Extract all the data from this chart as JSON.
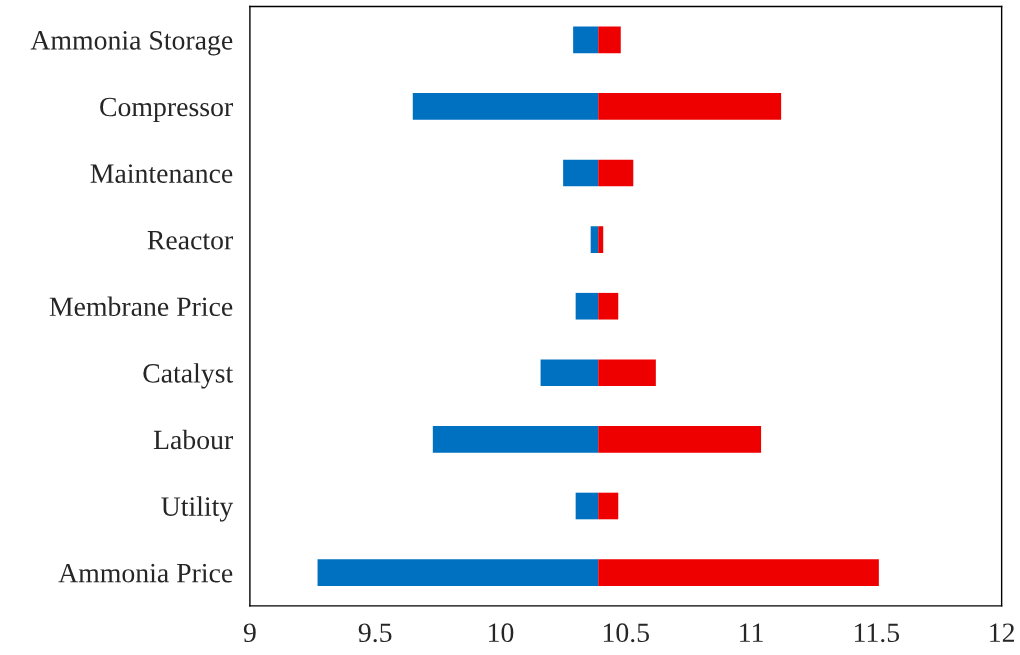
{
  "chart_data": {
    "type": "bar",
    "orientation": "horizontal",
    "categories": [
      "Ammonia Storage",
      "Compressor",
      "Maintenance",
      "Reactor",
      "Membrane Price",
      "Catalyst",
      "Labour",
      "Utility",
      "Ammonia Price"
    ],
    "series": [
      {
        "color": "#0070c0",
        "base": [
          10.29,
          9.65,
          10.25,
          10.36,
          10.3,
          10.16,
          9.73,
          10.3,
          9.27
        ],
        "values": [
          0.1,
          0.74,
          0.14,
          0.03,
          0.09,
          0.23,
          0.66,
          0.09,
          1.12
        ]
      },
      {
        "color": "#ee0000",
        "base": [
          10.39,
          10.39,
          10.39,
          10.39,
          10.39,
          10.39,
          10.39,
          10.39,
          10.39
        ],
        "values": [
          0.09,
          0.73,
          0.14,
          0.02,
          0.08,
          0.23,
          0.65,
          0.08,
          1.12
        ]
      }
    ],
    "xlim": [
      9,
      12
    ],
    "xticks": [
      9,
      9.5,
      10,
      10.5,
      11,
      11.5,
      12
    ],
    "grid": false,
    "legend": false
  }
}
